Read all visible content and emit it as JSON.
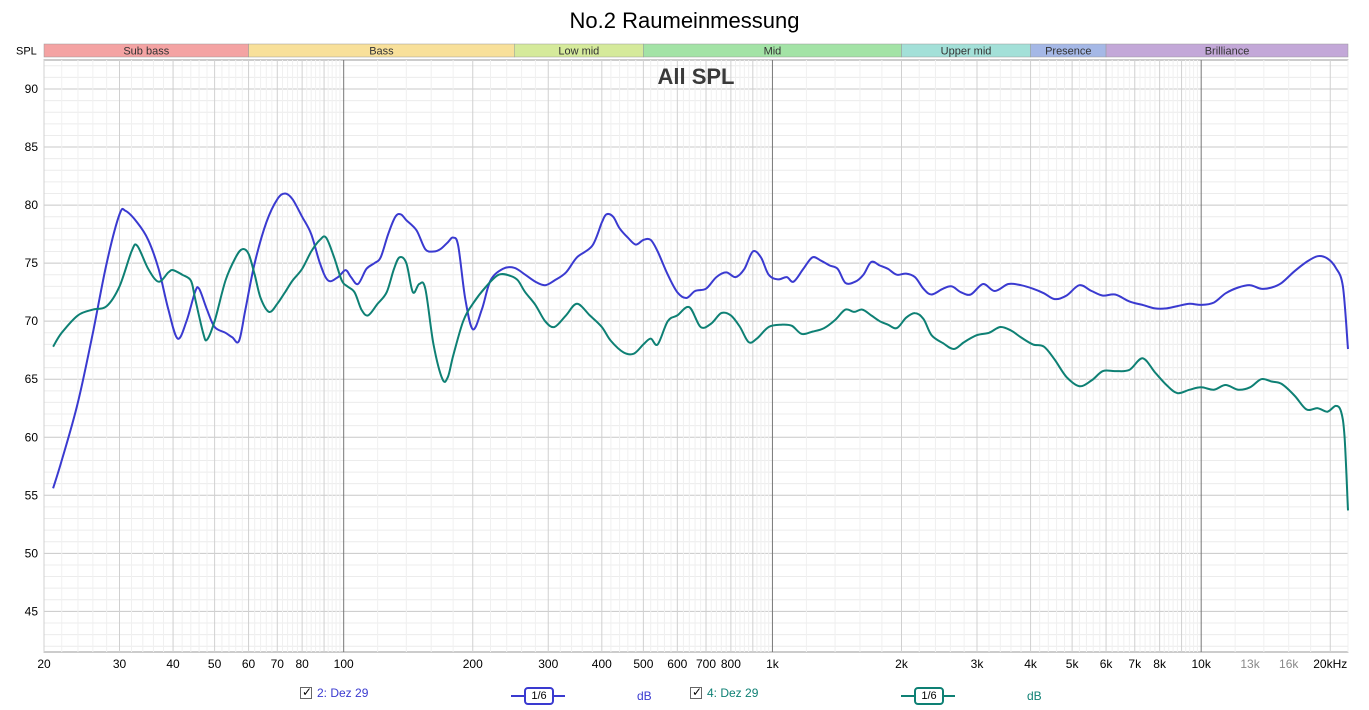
{
  "window_title": "No.2 Raumeinmessung",
  "chart_data": {
    "type": "line",
    "title": "No.2 Raumeinmessung",
    "subtitle": "All SPL",
    "ylabel": "SPL",
    "xscale": "log",
    "xlim": [
      20,
      22000
    ],
    "ylim": [
      41.5,
      92.5
    ],
    "grid": true,
    "x_ticks": [
      {
        "v": 20,
        "l": "20"
      },
      {
        "v": 30,
        "l": "30"
      },
      {
        "v": 40,
        "l": "40"
      },
      {
        "v": 50,
        "l": "50"
      },
      {
        "v": 60,
        "l": "60"
      },
      {
        "v": 70,
        "l": "70"
      },
      {
        "v": 80,
        "l": "80"
      },
      {
        "v": 100,
        "l": "100"
      },
      {
        "v": 200,
        "l": "200"
      },
      {
        "v": 300,
        "l": "300"
      },
      {
        "v": 400,
        "l": "400"
      },
      {
        "v": 500,
        "l": "500"
      },
      {
        "v": 600,
        "l": "600"
      },
      {
        "v": 700,
        "l": "700"
      },
      {
        "v": 800,
        "l": "800"
      },
      {
        "v": 1000,
        "l": "1k"
      },
      {
        "v": 2000,
        "l": "2k"
      },
      {
        "v": 3000,
        "l": "3k"
      },
      {
        "v": 4000,
        "l": "4k"
      },
      {
        "v": 5000,
        "l": "5k"
      },
      {
        "v": 6000,
        "l": "6k"
      },
      {
        "v": 7000,
        "l": "7k"
      },
      {
        "v": 8000,
        "l": "8k"
      },
      {
        "v": 10000,
        "l": "10k"
      },
      {
        "v": 13000,
        "l": "13k"
      },
      {
        "v": 16000,
        "l": "16k"
      },
      {
        "v": 20000,
        "l": "20kHz"
      }
    ],
    "y_ticks": [
      45,
      50,
      55,
      60,
      65,
      70,
      75,
      80,
      85,
      90
    ],
    "bands": [
      {
        "name": "Sub bass",
        "from": 20,
        "to": 60,
        "color": "#f4a3a3"
      },
      {
        "name": "Bass",
        "from": 60,
        "to": 250,
        "color": "#f8e09a"
      },
      {
        "name": "Low mid",
        "from": 250,
        "to": 500,
        "color": "#d5ea9b"
      },
      {
        "name": "Mid",
        "from": 500,
        "to": 2000,
        "color": "#a3e3a6"
      },
      {
        "name": "Upper mid",
        "from": 2000,
        "to": 4000,
        "color": "#a3e0d8"
      },
      {
        "name": "Presence",
        "from": 4000,
        "to": 6000,
        "color": "#a5b8e6"
      },
      {
        "name": "Brilliance",
        "from": 6000,
        "to": 22000,
        "color": "#c3a8d8"
      }
    ],
    "series": [
      {
        "name": "2: Dez 29",
        "color": "#3a3ad0",
        "smoothing": "1/6",
        "unit": "dB",
        "points": [
          [
            21,
            55.6
          ],
          [
            22,
            58
          ],
          [
            24,
            63
          ],
          [
            26,
            69
          ],
          [
            28,
            75
          ],
          [
            30,
            79.2
          ],
          [
            31,
            79.5
          ],
          [
            33,
            78.5
          ],
          [
            35,
            77
          ],
          [
            37,
            74.5
          ],
          [
            39,
            71
          ],
          [
            41,
            68.5
          ],
          [
            43,
            70
          ],
          [
            45,
            72.5
          ],
          [
            46,
            72.8
          ],
          [
            48,
            71
          ],
          [
            50,
            69.5
          ],
          [
            53,
            69
          ],
          [
            55,
            68.6
          ],
          [
            57,
            68.3
          ],
          [
            59,
            71
          ],
          [
            62,
            75
          ],
          [
            66,
            78.5
          ],
          [
            70,
            80.5
          ],
          [
            73,
            81
          ],
          [
            76,
            80.5
          ],
          [
            80,
            79
          ],
          [
            84,
            77.5
          ],
          [
            88,
            75
          ],
          [
            92,
            73.5
          ],
          [
            97,
            73.8
          ],
          [
            101,
            74.4
          ],
          [
            104,
            73.8
          ],
          [
            108,
            73.2
          ],
          [
            113,
            74.5
          ],
          [
            118,
            75
          ],
          [
            122,
            75.5
          ],
          [
            127,
            77.5
          ],
          [
            132,
            79
          ],
          [
            136,
            79.2
          ],
          [
            140,
            78.7
          ],
          [
            148,
            77.8
          ],
          [
            155,
            76.2
          ],
          [
            162,
            76
          ],
          [
            168,
            76.2
          ],
          [
            175,
            76.8
          ],
          [
            180,
            77.2
          ],
          [
            185,
            76.5
          ],
          [
            192,
            72
          ],
          [
            200,
            69.3
          ],
          [
            210,
            71
          ],
          [
            220,
            73.5
          ],
          [
            235,
            74.5
          ],
          [
            250,
            74.6
          ],
          [
            265,
            74
          ],
          [
            280,
            73.4
          ],
          [
            295,
            73.1
          ],
          [
            310,
            73.5
          ],
          [
            330,
            74.2
          ],
          [
            350,
            75.5
          ],
          [
            380,
            76.5
          ],
          [
            400,
            78.5
          ],
          [
            410,
            79.2
          ],
          [
            425,
            79
          ],
          [
            440,
            78
          ],
          [
            460,
            77.2
          ],
          [
            480,
            76.6
          ],
          [
            500,
            77
          ],
          [
            520,
            77
          ],
          [
            540,
            76
          ],
          [
            570,
            74
          ],
          [
            600,
            72.5
          ],
          [
            630,
            72
          ],
          [
            660,
            72.6
          ],
          [
            700,
            72.8
          ],
          [
            740,
            73.8
          ],
          [
            780,
            74.2
          ],
          [
            820,
            73.8
          ],
          [
            860,
            74.5
          ],
          [
            900,
            76
          ],
          [
            940,
            75.5
          ],
          [
            980,
            74
          ],
          [
            1030,
            73.6
          ],
          [
            1080,
            73.8
          ],
          [
            1120,
            73.4
          ],
          [
            1180,
            74.5
          ],
          [
            1240,
            75.5
          ],
          [
            1300,
            75.2
          ],
          [
            1360,
            74.8
          ],
          [
            1420,
            74.5
          ],
          [
            1480,
            73.3
          ],
          [
            1560,
            73.4
          ],
          [
            1630,
            74
          ],
          [
            1700,
            75.1
          ],
          [
            1780,
            74.8
          ],
          [
            1860,
            74.5
          ],
          [
            1950,
            74
          ],
          [
            2050,
            74.1
          ],
          [
            2150,
            73.8
          ],
          [
            2250,
            72.8
          ],
          [
            2350,
            72.3
          ],
          [
            2500,
            72.8
          ],
          [
            2620,
            73
          ],
          [
            2750,
            72.5
          ],
          [
            2900,
            72.3
          ],
          [
            3100,
            73.2
          ],
          [
            3300,
            72.6
          ],
          [
            3550,
            73.2
          ],
          [
            3800,
            73.1
          ],
          [
            4050,
            72.8
          ],
          [
            4300,
            72.4
          ],
          [
            4550,
            71.9
          ],
          [
            4850,
            72.2
          ],
          [
            5200,
            73.1
          ],
          [
            5550,
            72.6
          ],
          [
            5900,
            72.2
          ],
          [
            6300,
            72.3
          ],
          [
            6800,
            71.7
          ],
          [
            7300,
            71.4
          ],
          [
            7800,
            71.1
          ],
          [
            8300,
            71.1
          ],
          [
            8800,
            71.3
          ],
          [
            9400,
            71.5
          ],
          [
            10000,
            71.4
          ],
          [
            10700,
            71.6
          ],
          [
            11400,
            72.4
          ],
          [
            12200,
            72.9
          ],
          [
            13000,
            73.1
          ],
          [
            13800,
            72.8
          ],
          [
            14600,
            72.9
          ],
          [
            15400,
            73.3
          ],
          [
            16500,
            74.3
          ],
          [
            17600,
            75.1
          ],
          [
            18700,
            75.6
          ],
          [
            19700,
            75.4
          ],
          [
            20600,
            74.6
          ],
          [
            21400,
            73
          ],
          [
            22000,
            67.6
          ]
        ]
      },
      {
        "name": "4: Dez 29",
        "color": "#0e8074",
        "smoothing": "1/6",
        "unit": "dB",
        "points": [
          [
            21,
            67.8
          ],
          [
            22,
            69
          ],
          [
            24,
            70.5
          ],
          [
            26,
            71
          ],
          [
            28,
            71.3
          ],
          [
            30,
            73
          ],
          [
            32,
            76
          ],
          [
            33,
            76.5
          ],
          [
            35,
            74.5
          ],
          [
            37,
            73.4
          ],
          [
            39,
            74.2
          ],
          [
            40,
            74.4
          ],
          [
            42,
            74
          ],
          [
            44,
            73.5
          ],
          [
            45,
            72
          ],
          [
            47,
            69
          ],
          [
            48,
            68.4
          ],
          [
            50,
            70
          ],
          [
            53,
            73.5
          ],
          [
            56,
            75.5
          ],
          [
            58,
            76.2
          ],
          [
            60,
            75.8
          ],
          [
            62,
            74
          ],
          [
            64,
            72
          ],
          [
            67,
            70.8
          ],
          [
            70,
            71.5
          ],
          [
            73,
            72.5
          ],
          [
            76,
            73.5
          ],
          [
            80,
            74.5
          ],
          [
            84,
            76
          ],
          [
            88,
            77
          ],
          [
            91,
            77.2
          ],
          [
            95,
            75.5
          ],
          [
            99,
            73.5
          ],
          [
            102,
            73
          ],
          [
            106,
            72.5
          ],
          [
            110,
            71
          ],
          [
            114,
            70.5
          ],
          [
            120,
            71.5
          ],
          [
            126,
            72.5
          ],
          [
            131,
            74.5
          ],
          [
            135,
            75.5
          ],
          [
            140,
            75
          ],
          [
            145,
            72.5
          ],
          [
            150,
            73.2
          ],
          [
            155,
            72.8
          ],
          [
            162,
            68
          ],
          [
            170,
            65
          ],
          [
            175,
            65.2
          ],
          [
            180,
            67
          ],
          [
            190,
            70
          ],
          [
            200,
            71.5
          ],
          [
            215,
            73
          ],
          [
            230,
            74
          ],
          [
            245,
            73.9
          ],
          [
            255,
            73.5
          ],
          [
            265,
            72.5
          ],
          [
            280,
            71.4
          ],
          [
            295,
            70
          ],
          [
            310,
            69.5
          ],
          [
            330,
            70.5
          ],
          [
            350,
            71.5
          ],
          [
            375,
            70.5
          ],
          [
            400,
            69.5
          ],
          [
            420,
            68.3
          ],
          [
            450,
            67.3
          ],
          [
            475,
            67.2
          ],
          [
            500,
            68
          ],
          [
            520,
            68.5
          ],
          [
            540,
            68
          ],
          [
            570,
            70
          ],
          [
            600,
            70.5
          ],
          [
            640,
            71.2
          ],
          [
            680,
            69.5
          ],
          [
            720,
            69.8
          ],
          [
            760,
            70.7
          ],
          [
            800,
            70.5
          ],
          [
            840,
            69.5
          ],
          [
            880,
            68.2
          ],
          [
            920,
            68.5
          ],
          [
            980,
            69.5
          ],
          [
            1050,
            69.7
          ],
          [
            1110,
            69.6
          ],
          [
            1170,
            68.9
          ],
          [
            1240,
            69.1
          ],
          [
            1320,
            69.4
          ],
          [
            1400,
            70.1
          ],
          [
            1480,
            71
          ],
          [
            1550,
            70.8
          ],
          [
            1620,
            71
          ],
          [
            1700,
            70.5
          ],
          [
            1780,
            70
          ],
          [
            1860,
            69.7
          ],
          [
            1950,
            69.4
          ],
          [
            2050,
            70.3
          ],
          [
            2150,
            70.7
          ],
          [
            2250,
            70.2
          ],
          [
            2350,
            68.8
          ],
          [
            2500,
            68.1
          ],
          [
            2650,
            67.6
          ],
          [
            2800,
            68.2
          ],
          [
            3000,
            68.8
          ],
          [
            3200,
            69
          ],
          [
            3400,
            69.5
          ],
          [
            3600,
            69.2
          ],
          [
            3800,
            68.6
          ],
          [
            4050,
            68
          ],
          [
            4300,
            67.8
          ],
          [
            4550,
            66.7
          ],
          [
            4850,
            65.2
          ],
          [
            5200,
            64.4
          ],
          [
            5550,
            64.9
          ],
          [
            5900,
            65.7
          ],
          [
            6300,
            65.7
          ],
          [
            6800,
            65.8
          ],
          [
            7300,
            66.8
          ],
          [
            7800,
            65.6
          ],
          [
            8300,
            64.5
          ],
          [
            8800,
            63.8
          ],
          [
            9400,
            64.1
          ],
          [
            10000,
            64.3
          ],
          [
            10700,
            64.1
          ],
          [
            11400,
            64.5
          ],
          [
            12200,
            64.1
          ],
          [
            13000,
            64.3
          ],
          [
            13800,
            65
          ],
          [
            14600,
            64.8
          ],
          [
            15400,
            64.6
          ],
          [
            16500,
            63.6
          ],
          [
            17600,
            62.4
          ],
          [
            18700,
            62.5
          ],
          [
            19700,
            62.2
          ],
          [
            20600,
            62.7
          ],
          [
            21200,
            62.2
          ],
          [
            21600,
            60
          ],
          [
            22000,
            53.7
          ]
        ]
      }
    ]
  },
  "legend": {
    "entries": [
      {
        "label": "2: Dez 29",
        "checked": true,
        "smoothing": "1/6",
        "unit": "dB"
      },
      {
        "label": "4: Dez 29",
        "checked": true,
        "smoothing": "1/6",
        "unit": "dB"
      }
    ]
  }
}
